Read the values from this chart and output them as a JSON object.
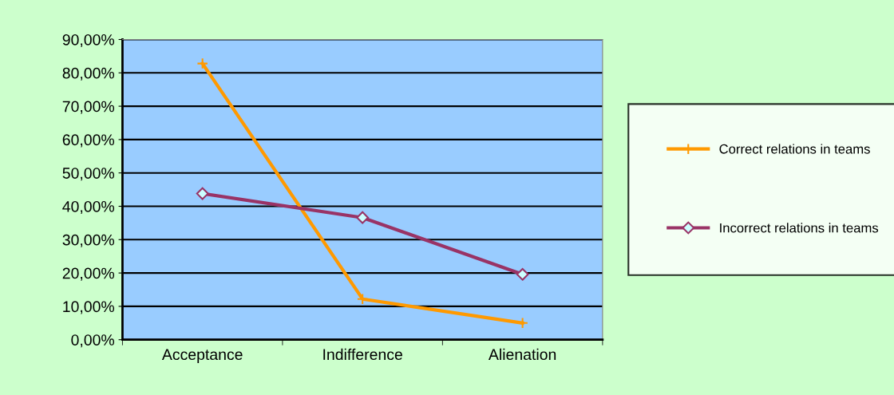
{
  "chart_data": {
    "type": "line",
    "categories": [
      "Acceptance",
      "Indifference",
      "Alienation"
    ],
    "series": [
      {
        "name": "Correct relations in teams",
        "color": "#ff9900",
        "marker": "cross",
        "values": [
          82.8,
          12.2,
          5.0
        ]
      },
      {
        "name": "Incorrect relations in teams",
        "color": "#993366",
        "marker": "diamond",
        "values": [
          43.8,
          36.6,
          19.6
        ]
      }
    ],
    "ylim": [
      0,
      90
    ],
    "yticks": [
      {
        "value": 0,
        "label": "0,00%"
      },
      {
        "value": 10,
        "label": "10,00%"
      },
      {
        "value": 20,
        "label": "20,00%"
      },
      {
        "value": 30,
        "label": "30,00%"
      },
      {
        "value": 40,
        "label": "40,00%"
      },
      {
        "value": 50,
        "label": "50,00%"
      },
      {
        "value": 60,
        "label": "60,00%"
      },
      {
        "value": 70,
        "label": "70,00%"
      },
      {
        "value": 80,
        "label": "80,00%"
      },
      {
        "value": 90,
        "label": "90,00%"
      }
    ],
    "grid": "y",
    "legend": "right",
    "line_style": "solid"
  }
}
